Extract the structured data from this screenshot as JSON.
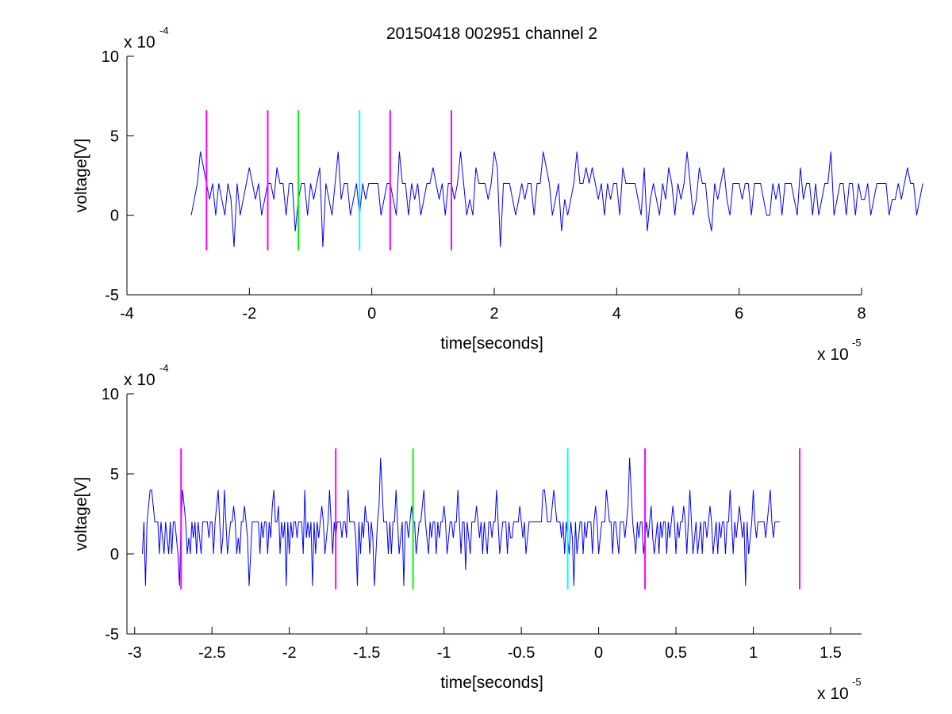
{
  "figure": {
    "title": "20150418 002951 channel 2"
  },
  "chart_data": [
    {
      "type": "line",
      "title": "20150418 002951 channel 2",
      "xlabel": "time[seconds]",
      "ylabel": "voltage[V]",
      "x_exponent_base": "x 10",
      "x_exponent_power": "-5",
      "y_exponent_base": "x 10",
      "y_exponent_power": "-4",
      "xlim": [
        -4,
        8
      ],
      "ylim": [
        -5,
        10
      ],
      "x_ticks": [
        -4,
        -2,
        0,
        2,
        4,
        6,
        8
      ],
      "x_tick_labels": [
        "-4",
        "-2",
        "0",
        "2",
        "4",
        "6",
        "8"
      ],
      "y_ticks": [
        -5,
        0,
        5,
        10
      ],
      "y_tick_labels": [
        "-5",
        "0",
        "5",
        "10"
      ],
      "grid": false,
      "signal": {
        "color": "#0000ff",
        "x_start": -2.95,
        "x_step": 0.05,
        "values": [
          0,
          1,
          2,
          4,
          3,
          2,
          1,
          2,
          0,
          2,
          1,
          0,
          2,
          1,
          -2,
          2,
          0,
          1,
          2,
          3,
          2,
          1,
          2,
          0,
          1,
          2,
          2,
          1,
          3,
          2,
          2,
          0,
          2,
          2,
          -1,
          1,
          2,
          2,
          0,
          2,
          1,
          2,
          3,
          -2,
          2,
          1,
          0,
          2,
          4,
          1,
          2,
          2,
          0,
          1,
          2,
          0,
          2,
          1,
          2,
          2,
          2,
          2,
          0,
          1,
          2,
          2,
          1,
          0,
          4,
          2,
          2,
          0,
          2,
          1,
          2,
          0,
          1,
          2,
          2,
          3,
          2,
          1,
          2,
          0,
          2,
          2,
          1,
          2,
          4,
          2,
          0,
          1,
          0,
          3,
          2,
          2,
          2,
          1,
          2,
          4,
          3,
          -2,
          2,
          2,
          2,
          1,
          0,
          1,
          2,
          1,
          2,
          2,
          0,
          2,
          2,
          4,
          3,
          2,
          0,
          1,
          2,
          -1,
          1,
          0,
          1,
          2,
          4,
          2,
          2,
          3,
          2,
          3,
          2,
          1,
          2,
          0,
          2,
          1,
          2,
          2,
          0,
          3,
          2,
          2,
          2,
          2,
          1,
          0,
          3,
          -1,
          1,
          2,
          1,
          0,
          2,
          1,
          3,
          2,
          0,
          2,
          1,
          2,
          4,
          2,
          0,
          1,
          3,
          2,
          2,
          0,
          -1,
          2,
          1,
          2,
          3,
          1,
          0,
          2,
          2,
          2,
          1,
          2,
          2,
          0,
          2,
          2,
          2,
          1,
          0,
          0,
          2,
          1,
          2,
          0,
          2,
          2,
          2,
          1,
          0,
          3,
          1,
          2,
          2,
          0,
          2,
          0,
          1,
          2,
          2,
          4,
          0,
          1,
          2,
          2,
          0,
          2,
          2,
          0,
          2,
          1,
          1,
          2,
          0,
          1,
          2,
          2,
          2,
          2,
          0,
          1,
          1,
          2,
          1,
          2,
          3,
          2,
          2,
          0,
          1,
          2
        ]
      },
      "markers": [
        {
          "x": -2.7,
          "y_min": -2.2,
          "y_max": 6.6,
          "color": "#ff00ff"
        },
        {
          "x": -1.7,
          "y_min": -2.2,
          "y_max": 6.6,
          "color": "#ff00ff"
        },
        {
          "x": -1.2,
          "y_min": -2.2,
          "y_max": 6.6,
          "color": "#00ff00"
        },
        {
          "x": -0.2,
          "y_min": -2.2,
          "y_max": 6.6,
          "color": "#00ffff"
        },
        {
          "x": 0.3,
          "y_min": -2.2,
          "y_max": 6.6,
          "color": "#ff00ff"
        },
        {
          "x": 1.3,
          "y_min": -2.2,
          "y_max": 6.6,
          "color": "#ff00ff"
        }
      ]
    },
    {
      "type": "line",
      "title": "",
      "xlabel": "time[seconds]",
      "ylabel": "voltage[V]",
      "x_exponent_base": "x 10",
      "x_exponent_power": "-5",
      "y_exponent_base": "x 10",
      "y_exponent_power": "-4",
      "xlim": [
        -3.05,
        1.7
      ],
      "ylim": [
        -5,
        10
      ],
      "x_ticks": [
        -3,
        -2.5,
        -2,
        -1.5,
        -1,
        -0.5,
        0,
        0.5,
        1,
        1.5
      ],
      "x_tick_labels": [
        "-3",
        "-2.5",
        "-2",
        "-1.5",
        "-1",
        "-0.5",
        "0",
        "0.5",
        "1",
        "1.5"
      ],
      "y_ticks": [
        -5,
        0,
        5,
        10
      ],
      "y_tick_labels": [
        "-5",
        "0",
        "5",
        "10"
      ],
      "grid": false,
      "signal": {
        "color": "#0000ff",
        "x_start": -2.95,
        "x_step": 0.01,
        "values": [
          0,
          2,
          -2,
          2,
          3,
          4,
          4,
          3,
          2,
          2,
          2,
          0,
          2,
          1,
          0,
          2,
          1,
          0,
          2,
          0,
          2,
          2,
          1,
          0,
          -2,
          2,
          4,
          3,
          2,
          0,
          1,
          0,
          2,
          1,
          2,
          0,
          2,
          1,
          0,
          2,
          2,
          2,
          2,
          1,
          2,
          2,
          0,
          2,
          3,
          4,
          2,
          0,
          1,
          4,
          2,
          0,
          1,
          2,
          2,
          3,
          2,
          0,
          1,
          0,
          2,
          2,
          3,
          2,
          1,
          -2,
          0,
          2,
          2,
          2,
          2,
          2,
          0,
          2,
          1,
          2,
          2,
          0,
          2,
          1,
          3,
          4,
          2,
          2,
          3,
          0,
          2,
          1,
          2,
          -2,
          2,
          0,
          2,
          1,
          2,
          2,
          1,
          2,
          2,
          2,
          0,
          4,
          1,
          2,
          1,
          2,
          -2,
          2,
          0,
          2,
          1,
          2,
          3,
          2,
          0,
          1,
          2,
          4,
          2,
          0,
          2,
          1,
          2,
          2,
          2,
          1,
          2,
          2,
          1,
          4,
          2,
          2,
          2,
          2,
          1,
          -2,
          2,
          0,
          2,
          1,
          3,
          2,
          2,
          0,
          2,
          1,
          -2,
          0,
          2,
          3,
          6,
          4,
          2,
          2,
          2,
          0,
          2,
          0,
          2,
          2,
          4,
          2,
          0,
          1,
          2,
          -2,
          2,
          2,
          1,
          2,
          3,
          2,
          2,
          0,
          1,
          2,
          2,
          3,
          4,
          2,
          1,
          0,
          2,
          1,
          2,
          2,
          0,
          2,
          1,
          2,
          2,
          3,
          2,
          0,
          1,
          2,
          2,
          1,
          2,
          2,
          4,
          2,
          0,
          2,
          2,
          -1,
          2,
          1,
          0,
          2,
          2,
          2,
          3,
          2,
          1,
          2,
          0,
          2,
          1,
          0,
          2,
          2,
          1,
          2,
          2,
          4,
          2,
          0,
          1,
          2,
          2,
          2,
          0,
          2,
          1,
          1,
          2,
          2,
          2,
          2,
          3,
          2,
          1,
          2,
          0,
          1,
          2,
          2,
          2,
          2,
          2,
          2,
          2,
          2,
          2,
          4,
          4,
          3,
          2,
          2,
          2,
          3,
          4,
          3,
          2,
          2,
          2,
          1,
          2,
          0,
          2,
          1,
          0,
          2,
          1,
          -2,
          2,
          0,
          1,
          2,
          2,
          0,
          2,
          1,
          2,
          2,
          2,
          0,
          2,
          3,
          2,
          0,
          1,
          2,
          2,
          2,
          4,
          3,
          2,
          2,
          0,
          2,
          2,
          1,
          0,
          2,
          2,
          2,
          1,
          2,
          3,
          6,
          4,
          2,
          1,
          0,
          2,
          1,
          2,
          2,
          0,
          1,
          2,
          1,
          2,
          3,
          1,
          0,
          1,
          2,
          0,
          2,
          1,
          2,
          2,
          0,
          2,
          1,
          2,
          3,
          2,
          0,
          2,
          1,
          2,
          2,
          3,
          2,
          0,
          2,
          4,
          2,
          0,
          1,
          2,
          0,
          1,
          2,
          0,
          2,
          2,
          1,
          2,
          3,
          2,
          0,
          1,
          2,
          0,
          2,
          1,
          2,
          2,
          0,
          2,
          2,
          4,
          2,
          0,
          2,
          1,
          2,
          3,
          2,
          1,
          2,
          -2,
          2,
          0,
          1,
          2,
          4,
          2,
          1,
          2,
          2,
          2,
          2,
          2,
          1,
          2,
          3,
          4,
          2,
          1,
          2,
          2,
          2,
          2
        ]
      },
      "markers": [
        {
          "x": -2.7,
          "y_min": -2.2,
          "y_max": 6.6,
          "color": "#ff00ff"
        },
        {
          "x": -1.7,
          "y_min": -2.2,
          "y_max": 6.6,
          "color": "#ff00ff"
        },
        {
          "x": -1.2,
          "y_min": -2.2,
          "y_max": 6.6,
          "color": "#00ff00"
        },
        {
          "x": -0.2,
          "y_min": -2.2,
          "y_max": 6.6,
          "color": "#00ffff"
        },
        {
          "x": 0.3,
          "y_min": -2.2,
          "y_max": 6.6,
          "color": "#ff00ff"
        },
        {
          "x": 1.3,
          "y_min": -2.2,
          "y_max": 6.6,
          "color": "#ff00ff"
        }
      ]
    }
  ]
}
